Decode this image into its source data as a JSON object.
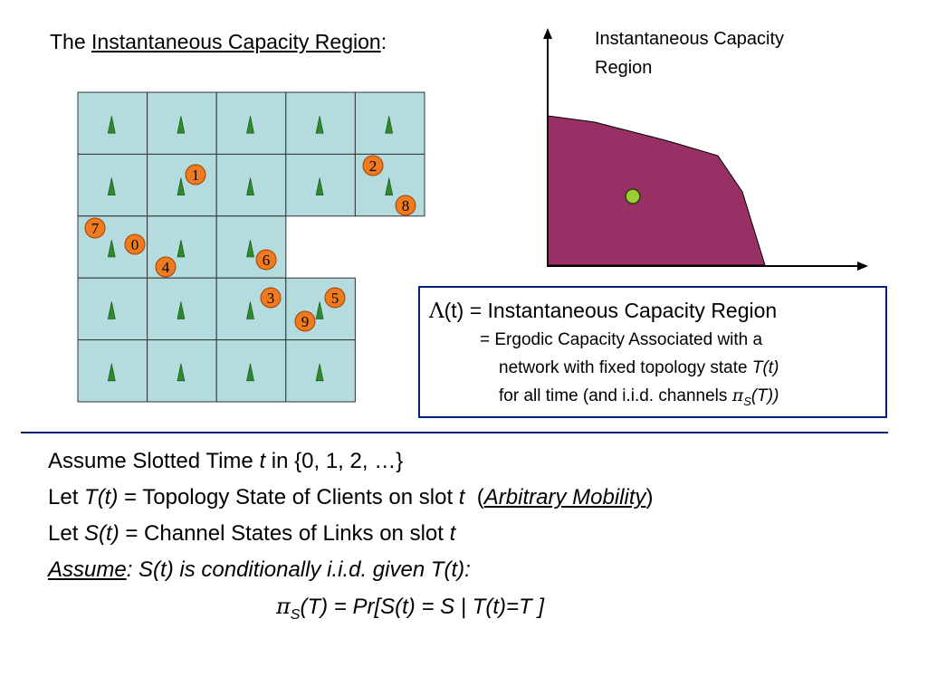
{
  "title": {
    "prefix": "The ",
    "link": "Instantaneous Capacity Region",
    "suffix": ":"
  },
  "grid": {
    "fill_color": "#b4dcdf",
    "line_color": "#333333",
    "tower_color": "#2c8a2c",
    "node_fill": "#f07b1f",
    "node_stroke": "#a33e00",
    "nodes": [
      {
        "label": "1"
      },
      {
        "label": "2"
      },
      {
        "label": "8"
      },
      {
        "label": "7"
      },
      {
        "label": "0"
      },
      {
        "label": "4"
      },
      {
        "label": "6"
      },
      {
        "label": "3"
      },
      {
        "label": "5"
      },
      {
        "label": "9"
      }
    ]
  },
  "region": {
    "title_line1": "Instantaneous Capacity",
    "title_line2": "Region",
    "fill_color": "#983065",
    "point_color": "#9acd32"
  },
  "definition": {
    "symbol": "Λ",
    "line1_after_symbol": "(t) = ",
    "line1_rest": "Instantaneous Capacity Region",
    "line2": "= Ergodic Capacity Associated with a",
    "line3_plain": "network with fixed topology state ",
    "line3_italic": "T(t)",
    "line4_plain": "for all time (and i.i.d. channels ",
    "pi": "π",
    "sub_s": "S",
    "line4_tail": "(T))",
    "border_color": "#0c1f7a"
  },
  "body": {
    "l1_a": "Assume Slotted Time ",
    "l1_t": "t",
    "l1_b": " in {0, 1, 2, …}",
    "l2_a": "Let ",
    "l2_t": "T(t)",
    "l2_b": " = Topology State of Clients on slot ",
    "l2_t2": "t",
    "l2_c": "  (",
    "l2_link": "Arbitrary Mobility",
    "l2_d": ")",
    "l3_a": "Let ",
    "l3_s": "S(t)",
    "l3_b": " = Channel States of Links on slot ",
    "l3_t": "t",
    "l4_link": "Assume",
    "l4_rest": ": S(t) is conditionally i.i.d. given T(t):",
    "l5_pi": "π",
    "l5_sub": "S",
    "l5_a": "(T) = Pr",
    "l5_b": "[S(t) = S | T(t)=T ]"
  }
}
